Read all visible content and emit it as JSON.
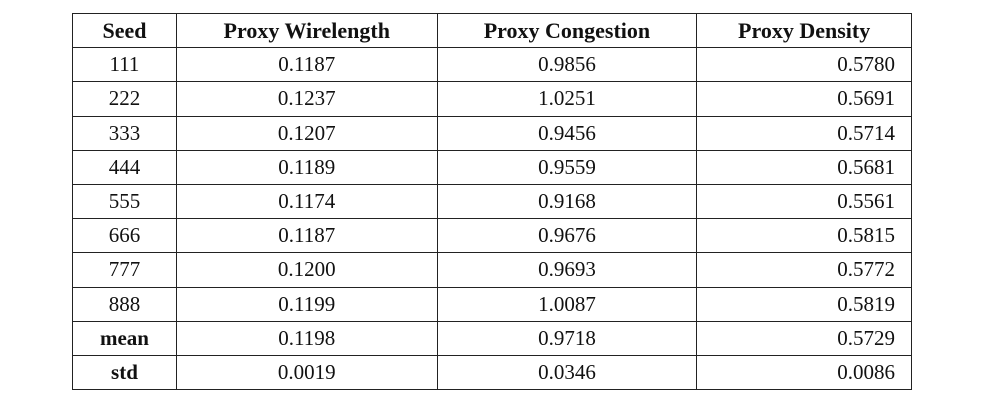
{
  "table": {
    "header": [
      "Seed",
      "Proxy Wirelength",
      "Proxy Congestion",
      "Proxy Density"
    ],
    "rows": [
      [
        "111",
        "0.1187",
        "0.9856",
        "0.5780"
      ],
      [
        "222",
        "0.1237",
        "1.0251",
        "0.5691"
      ],
      [
        "333",
        "0.1207",
        "0.9456",
        "0.5714"
      ],
      [
        "444",
        "0.1189",
        "0.9559",
        "0.5681"
      ],
      [
        "555",
        "0.1174",
        "0.9168",
        "0.5561"
      ],
      [
        "666",
        "0.1187",
        "0.9676",
        "0.5815"
      ],
      [
        "777",
        "0.1200",
        "0.9693",
        "0.5772"
      ],
      [
        "888",
        "0.1199",
        "1.0087",
        "0.5819"
      ],
      [
        "mean",
        "0.1198",
        "0.9718",
        "0.5729"
      ],
      [
        "std",
        "0.0019",
        "0.0346",
        "0.0086"
      ]
    ]
  }
}
